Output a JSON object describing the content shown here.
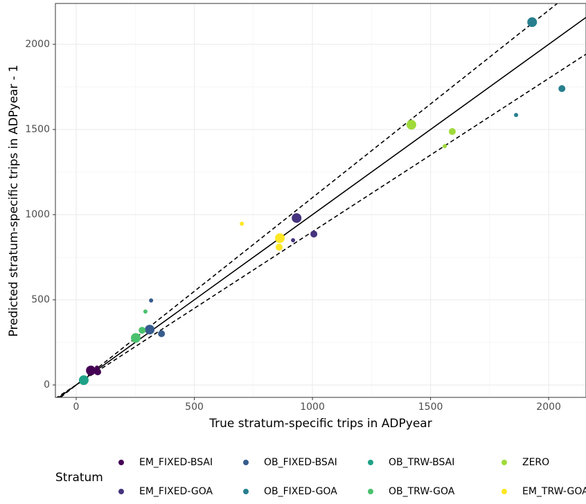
{
  "chart_data": {
    "type": "scatter",
    "xlabel": "True stratum-specific trips in ADPyear",
    "ylabel": "Predicted stratum-specific trips in ADPyear - 1",
    "xlim": [
      -88,
      2158
    ],
    "ylim": [
      -73,
      2240
    ],
    "xticks": [
      0,
      500,
      1000,
      1500,
      2000
    ],
    "yticks": [
      0,
      500,
      1000,
      1500,
      2000
    ],
    "grid": true,
    "legend_title": "Stratum",
    "legend_position": "bottom",
    "reference_lines": [
      {
        "slope": 1,
        "dashed": false
      },
      {
        "slope": 1.1,
        "dashed": true
      },
      {
        "slope": 0.9,
        "dashed": true
      }
    ],
    "series": [
      {
        "name": "EM_FIXED-BSAI",
        "color": "#440154",
        "x": [
          62,
          91,
          88
        ],
        "values": [
          85,
          77,
          102
        ],
        "sizes": [
          7,
          5,
          3
        ]
      },
      {
        "name": "EM_FIXED-GOA",
        "color": "#46337E",
        "x": [
          933,
          1006,
          918
        ],
        "values": [
          980,
          886,
          850
        ],
        "sizes": [
          7,
          5,
          3
        ]
      },
      {
        "name": "OB_FIXED-BSAI",
        "color": "#365C8D",
        "x": [
          311,
          361,
          317
        ],
        "values": [
          325,
          301,
          496
        ],
        "sizes": [
          7,
          5,
          3
        ]
      },
      {
        "name": "OB_FIXED-GOA",
        "color": "#277F8E",
        "x": [
          1930,
          2056,
          1862
        ],
        "values": [
          2130,
          1740,
          1585
        ],
        "sizes": [
          7,
          5,
          3
        ]
      },
      {
        "name": "OB_TRW-BSAI",
        "color": "#1FA187",
        "x": [
          32
        ],
        "values": [
          28
        ],
        "sizes": [
          7
        ]
      },
      {
        "name": "OB_TRW-GOA",
        "color": "#4AC16D",
        "x": [
          252,
          279,
          293
        ],
        "values": [
          276,
          321,
          431
        ],
        "sizes": [
          7,
          5,
          3
        ]
      },
      {
        "name": "ZERO",
        "color": "#9FDA3A",
        "x": [
          1419,
          1592,
          1560
        ],
        "values": [
          1528,
          1488,
          1402
        ],
        "sizes": [
          7,
          5,
          3
        ]
      },
      {
        "name": "EM_TRW-GOA",
        "color": "#FDE725",
        "x": [
          862,
          859,
          701
        ],
        "values": [
          862,
          809,
          947
        ],
        "sizes": [
          7,
          5,
          3
        ]
      }
    ]
  }
}
